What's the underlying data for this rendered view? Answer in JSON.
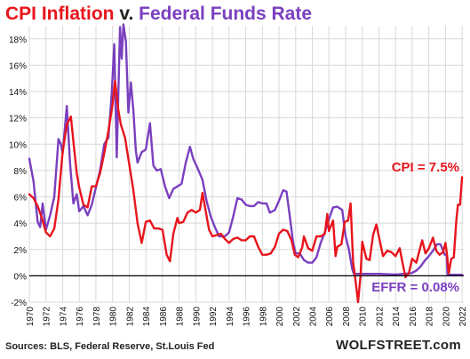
{
  "title": {
    "part1": "CPI Inflation",
    "part2": "v.",
    "part3": "Federal Funds Rate"
  },
  "source": "Sources: BLS, Federal Reserve, St.Louis Fed",
  "brand": "WOLFSTREET.com",
  "chart_data": {
    "type": "line",
    "title": "CPI Inflation v. Federal Funds Rate",
    "xlim": [
      1970,
      2022.2
    ],
    "ylim": [
      -2,
      19
    ],
    "y_ticks": [
      -2,
      0,
      2,
      4,
      6,
      8,
      10,
      12,
      14,
      16,
      18
    ],
    "y_tick_labels": [
      "-2%",
      "0%",
      "2%",
      "4%",
      "6%",
      "8%",
      "10%",
      "12%",
      "14%",
      "16%",
      "18%"
    ],
    "x_ticks": [
      1970,
      1972,
      1974,
      1976,
      1978,
      1980,
      1982,
      1984,
      1986,
      1988,
      1990,
      1992,
      1994,
      1996,
      1998,
      2000,
      2002,
      2004,
      2006,
      2008,
      2010,
      2012,
      2014,
      2016,
      2018,
      2020,
      2022
    ],
    "x_tick_labels": [
      "1970",
      "1972",
      "1974",
      "1976",
      "1978",
      "1980",
      "1982",
      "1984",
      "1986",
      "1988",
      "1990",
      "1992",
      "1994",
      "1996",
      "1998",
      "2000",
      "2002",
      "2004",
      "2006",
      "2008",
      "2010",
      "2012",
      "2014",
      "2016",
      "2018",
      "2020",
      "2022"
    ],
    "grid": true,
    "colors": {
      "cpi": "#e8141c",
      "effr": "#7a3fbf",
      "grid": "#d9d9d9",
      "axis": "#000000"
    },
    "annotations": [
      {
        "text": "CPI = 7.5%",
        "series": "cpi"
      },
      {
        "text": "EFFR = 0.08%",
        "series": "effr"
      }
    ],
    "series": [
      {
        "name": "CPI Inflation",
        "color": "#e8141c",
        "points": [
          [
            1970,
            6.2
          ],
          [
            1970.5,
            5.9
          ],
          [
            1971,
            5.3
          ],
          [
            1971.5,
            4.4
          ],
          [
            1972,
            3.3
          ],
          [
            1972.5,
            3.0
          ],
          [
            1973,
            3.6
          ],
          [
            1973.5,
            5.8
          ],
          [
            1974,
            9.4
          ],
          [
            1974.5,
            11.5
          ],
          [
            1975,
            12.1
          ],
          [
            1975.3,
            10.2
          ],
          [
            1975.7,
            7.8
          ],
          [
            1976,
            6.7
          ],
          [
            1976.5,
            5.4
          ],
          [
            1977,
            5.2
          ],
          [
            1977.5,
            6.8
          ],
          [
            1978,
            6.8
          ],
          [
            1978.5,
            7.8
          ],
          [
            1979,
            9.3
          ],
          [
            1979.5,
            11.0
          ],
          [
            1980,
            13.0
          ],
          [
            1980.3,
            14.8
          ],
          [
            1980.7,
            12.6
          ],
          [
            1981,
            11.5
          ],
          [
            1981.5,
            10.5
          ],
          [
            1982,
            8.5
          ],
          [
            1982.5,
            6.5
          ],
          [
            1983,
            4.0
          ],
          [
            1983.5,
            2.5
          ],
          [
            1984,
            4.1
          ],
          [
            1984.5,
            4.2
          ],
          [
            1985,
            3.6
          ],
          [
            1985.5,
            3.6
          ],
          [
            1986,
            3.5
          ],
          [
            1986.5,
            1.6
          ],
          [
            1986.9,
            1.1
          ],
          [
            1987.3,
            3.2
          ],
          [
            1987.8,
            4.4
          ],
          [
            1988,
            4.0
          ],
          [
            1988.5,
            4.1
          ],
          [
            1989,
            4.8
          ],
          [
            1989.5,
            5.0
          ],
          [
            1990,
            4.8
          ],
          [
            1990.5,
            5.0
          ],
          [
            1990.8,
            6.3
          ],
          [
            1991.2,
            4.9
          ],
          [
            1991.6,
            3.5
          ],
          [
            1992,
            3.0
          ],
          [
            1992.5,
            3.1
          ],
          [
            1993,
            3.2
          ],
          [
            1993.5,
            2.8
          ],
          [
            1994,
            2.5
          ],
          [
            1994.5,
            2.8
          ],
          [
            1995,
            2.9
          ],
          [
            1995.5,
            2.7
          ],
          [
            1996,
            2.7
          ],
          [
            1996.5,
            3.0
          ],
          [
            1997,
            3.0
          ],
          [
            1997.5,
            2.2
          ],
          [
            1998,
            1.6
          ],
          [
            1998.5,
            1.6
          ],
          [
            1999,
            1.7
          ],
          [
            1999.5,
            2.2
          ],
          [
            2000,
            3.2
          ],
          [
            2000.5,
            3.5
          ],
          [
            2001,
            3.4
          ],
          [
            2001.5,
            2.7
          ],
          [
            2001.9,
            1.6
          ],
          [
            2002.3,
            1.4
          ],
          [
            2002.8,
            2.2
          ],
          [
            2003,
            3.0
          ],
          [
            2003.5,
            2.1
          ],
          [
            2004,
            1.9
          ],
          [
            2004.5,
            3.0
          ],
          [
            2005,
            3.0
          ],
          [
            2005.5,
            3.2
          ],
          [
            2005.8,
            4.7
          ],
          [
            2006,
            3.4
          ],
          [
            2006.5,
            4.2
          ],
          [
            2006.8,
            1.5
          ],
          [
            2007,
            2.2
          ],
          [
            2007.5,
            2.4
          ],
          [
            2007.9,
            4.1
          ],
          [
            2008.3,
            4.2
          ],
          [
            2008.6,
            5.5
          ],
          [
            2008.9,
            1.1
          ],
          [
            2009.2,
            -0.4
          ],
          [
            2009.5,
            -2.0
          ],
          [
            2009.8,
            0.0
          ],
          [
            2010,
            2.6
          ],
          [
            2010.5,
            1.3
          ],
          [
            2010.9,
            1.2
          ],
          [
            2011.3,
            3.1
          ],
          [
            2011.7,
            3.9
          ],
          [
            2012,
            3.0
          ],
          [
            2012.5,
            1.5
          ],
          [
            2013,
            1.9
          ],
          [
            2013.5,
            1.8
          ],
          [
            2014,
            1.5
          ],
          [
            2014.5,
            2.1
          ],
          [
            2014.9,
            0.8
          ],
          [
            2015.2,
            -0.1
          ],
          [
            2015.6,
            0.2
          ],
          [
            2016,
            1.3
          ],
          [
            2016.5,
            1.0
          ],
          [
            2016.9,
            2.0
          ],
          [
            2017.2,
            2.7
          ],
          [
            2017.6,
            1.7
          ],
          [
            2018,
            2.1
          ],
          [
            2018.5,
            2.9
          ],
          [
            2018.9,
            1.9
          ],
          [
            2019.3,
            1.6
          ],
          [
            2019.7,
            1.8
          ],
          [
            2020,
            2.5
          ],
          [
            2020.2,
            1.5
          ],
          [
            2020.4,
            0.2
          ],
          [
            2020.7,
            1.3
          ],
          [
            2021,
            1.4
          ],
          [
            2021.3,
            4.2
          ],
          [
            2021.5,
            5.4
          ],
          [
            2021.75,
            5.4
          ],
          [
            2022,
            7.5
          ]
        ]
      },
      {
        "name": "Federal Funds Rate",
        "color": "#7a3fbf",
        "points": [
          [
            1970,
            8.9
          ],
          [
            1970.5,
            7.2
          ],
          [
            1971,
            4.1
          ],
          [
            1971.3,
            3.7
          ],
          [
            1971.6,
            5.5
          ],
          [
            1972,
            3.5
          ],
          [
            1972.5,
            4.6
          ],
          [
            1973,
            6.0
          ],
          [
            1973.5,
            10.4
          ],
          [
            1973.8,
            10.0
          ],
          [
            1974,
            9.3
          ],
          [
            1974.5,
            12.9
          ],
          [
            1974.9,
            8.5
          ],
          [
            1975.3,
            5.5
          ],
          [
            1975.7,
            6.2
          ],
          [
            1976,
            4.9
          ],
          [
            1976.5,
            5.3
          ],
          [
            1977,
            4.6
          ],
          [
            1977.5,
            5.4
          ],
          [
            1978,
            6.7
          ],
          [
            1978.5,
            8.0
          ],
          [
            1979,
            10.0
          ],
          [
            1979.5,
            10.5
          ],
          [
            1979.9,
            13.8
          ],
          [
            1980.2,
            17.6
          ],
          [
            1980.5,
            9.0
          ],
          [
            1980.9,
            18.9
          ],
          [
            1981.1,
            16.5
          ],
          [
            1981.3,
            19.1
          ],
          [
            1981.6,
            17.8
          ],
          [
            1981.9,
            12.4
          ],
          [
            1982.2,
            14.7
          ],
          [
            1982.5,
            12.6
          ],
          [
            1982.8,
            9.5
          ],
          [
            1983,
            8.6
          ],
          [
            1983.5,
            9.4
          ],
          [
            1984,
            9.6
          ],
          [
            1984.5,
            11.6
          ],
          [
            1984.9,
            8.4
          ],
          [
            1985.3,
            8.0
          ],
          [
            1985.8,
            8.1
          ],
          [
            1986.3,
            6.8
          ],
          [
            1986.8,
            5.9
          ],
          [
            1987.3,
            6.6
          ],
          [
            1987.8,
            6.8
          ],
          [
            1988.3,
            7.0
          ],
          [
            1988.8,
            8.6
          ],
          [
            1989.3,
            9.8
          ],
          [
            1989.7,
            8.9
          ],
          [
            1990.2,
            8.2
          ],
          [
            1990.8,
            7.3
          ],
          [
            1991.3,
            5.7
          ],
          [
            1991.8,
            4.5
          ],
          [
            1992.3,
            3.7
          ],
          [
            1992.8,
            3.0
          ],
          [
            1993.5,
            3.0
          ],
          [
            1994,
            3.3
          ],
          [
            1994.5,
            4.5
          ],
          [
            1995,
            5.9
          ],
          [
            1995.5,
            5.8
          ],
          [
            1996,
            5.4
          ],
          [
            1996.5,
            5.3
          ],
          [
            1997,
            5.3
          ],
          [
            1997.5,
            5.6
          ],
          [
            1998,
            5.5
          ],
          [
            1998.5,
            5.5
          ],
          [
            1998.9,
            4.8
          ],
          [
            1999.5,
            5.0
          ],
          [
            2000,
            5.7
          ],
          [
            2000.5,
            6.5
          ],
          [
            2000.9,
            6.4
          ],
          [
            2001.3,
            4.5
          ],
          [
            2001.7,
            2.5
          ],
          [
            2002,
            1.7
          ],
          [
            2002.5,
            1.7
          ],
          [
            2003,
            1.2
          ],
          [
            2003.5,
            1.0
          ],
          [
            2004,
            1.0
          ],
          [
            2004.5,
            1.4
          ],
          [
            2005,
            2.5
          ],
          [
            2005.5,
            3.3
          ],
          [
            2006,
            4.3
          ],
          [
            2006.5,
            5.2
          ],
          [
            2007,
            5.25
          ],
          [
            2007.6,
            5.0
          ],
          [
            2008,
            3.0
          ],
          [
            2008.4,
            2.0
          ],
          [
            2008.8,
            0.5
          ],
          [
            2009,
            0.15
          ],
          [
            2010,
            0.15
          ],
          [
            2012,
            0.15
          ],
          [
            2014,
            0.1
          ],
          [
            2015.9,
            0.2
          ],
          [
            2016.5,
            0.4
          ],
          [
            2017,
            0.7
          ],
          [
            2017.5,
            1.15
          ],
          [
            2018,
            1.5
          ],
          [
            2018.5,
            1.9
          ],
          [
            2019,
            2.4
          ],
          [
            2019.4,
            2.4
          ],
          [
            2019.6,
            2.1
          ],
          [
            2019.9,
            1.6
          ],
          [
            2020.15,
            1.6
          ],
          [
            2020.25,
            0.08
          ],
          [
            2021,
            0.08
          ],
          [
            2022,
            0.08
          ]
        ]
      }
    ]
  }
}
